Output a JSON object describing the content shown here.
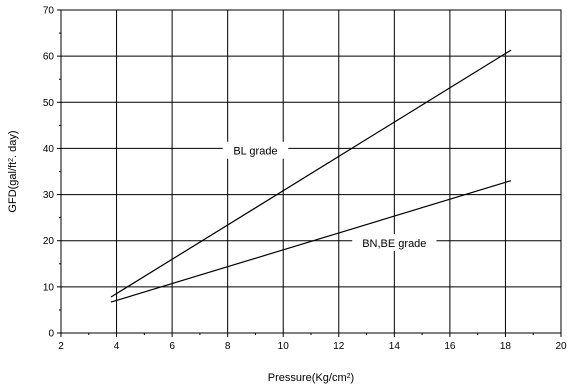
{
  "chart_data": {
    "type": "line",
    "title": "",
    "xlabel": "Pressure(Kg/cm",
    "xlabel_sup": "2",
    "xlabel_end": ")",
    "ylabel": "GFD(gal/ft",
    "ylabel_sup": "2",
    "ylabel_end": ". day)",
    "xlim": [
      2,
      20
    ],
    "ylim": [
      0,
      70
    ],
    "x_ticks": [
      2,
      4,
      6,
      8,
      10,
      12,
      14,
      16,
      18,
      20
    ],
    "y_ticks": [
      0,
      10,
      20,
      30,
      40,
      50,
      60,
      70
    ],
    "grid": true,
    "legend": "none",
    "series": [
      {
        "name": "BL grade",
        "x": [
          3.8,
          18.2
        ],
        "y": [
          7.8,
          61.3
        ]
      },
      {
        "name": "BN,BE grade",
        "x": [
          3.8,
          18.2
        ],
        "y": [
          6.7,
          33.0
        ]
      }
    ],
    "annotations": [
      {
        "text": "BL grade",
        "x": 9.0,
        "y": 39.5
      },
      {
        "text": "BN,BE grade",
        "x": 14.0,
        "y": 19.5
      }
    ]
  }
}
